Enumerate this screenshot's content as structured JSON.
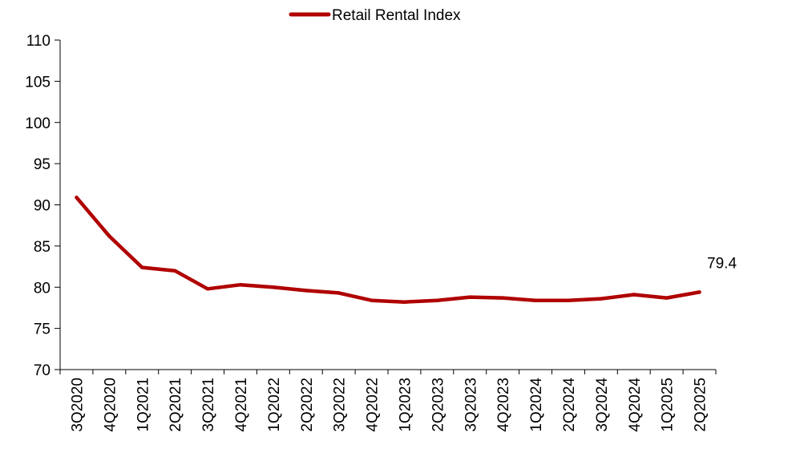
{
  "chart_data": {
    "type": "line",
    "title": "",
    "xlabel": "",
    "ylabel": "",
    "ylim": [
      70,
      110
    ],
    "yticks": [
      70,
      75,
      80,
      85,
      90,
      95,
      100,
      105,
      110
    ],
    "grid": false,
    "legend_position": "top-center",
    "categories": [
      "3Q2020",
      "4Q2020",
      "1Q2021",
      "2Q2021",
      "3Q2021",
      "4Q2021",
      "1Q2022",
      "2Q2022",
      "3Q2022",
      "4Q2022",
      "1Q2023",
      "2Q2023",
      "3Q2023",
      "4Q2023",
      "1Q2024",
      "2Q2024",
      "3Q2024",
      "4Q2024",
      "1Q2025",
      "2Q2025"
    ],
    "series": [
      {
        "name": "Retail Rental Index",
        "color": "#b00000",
        "values": [
          90.9,
          86.2,
          82.4,
          82.0,
          79.8,
          80.3,
          80.0,
          79.6,
          79.3,
          78.4,
          78.2,
          78.4,
          78.8,
          78.7,
          78.4,
          78.4,
          78.6,
          79.1,
          78.7,
          79.4
        ]
      }
    ],
    "annotations": [
      {
        "series": 0,
        "index": 19,
        "text": "79.4"
      }
    ]
  }
}
